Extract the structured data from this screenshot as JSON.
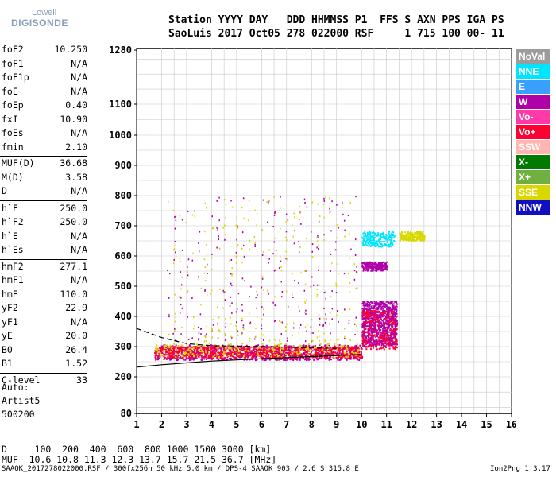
{
  "logo": {
    "line1": "Lowell",
    "line2": "DIGISONDE"
  },
  "header": {
    "row1": "Station YYYY DAY   DDD HHMMSS P1  FFS S AXN PPS IGA PS",
    "row2": "SaoLuis 2017 Oct05 278 022000 RSF     1 715 100 00- 11"
  },
  "params": [
    {
      "label": "foF2",
      "value": "10.250"
    },
    {
      "label": "foF1",
      "value": "N/A"
    },
    {
      "label": "foF1p",
      "value": "N/A"
    },
    {
      "label": "foE",
      "value": "N/A"
    },
    {
      "label": "foEp",
      "value": "0.40"
    },
    {
      "label": "fxI",
      "value": "10.90"
    },
    {
      "label": "foEs",
      "value": "N/A"
    },
    {
      "label": "fmin",
      "value": "2.10"
    },
    {
      "label": "MUF(D)",
      "value": "36.68"
    },
    {
      "label": "M(D)",
      "value": "3.58"
    },
    {
      "label": "D",
      "value": "N/A"
    },
    {
      "label": "h`F",
      "value": "250.0"
    },
    {
      "label": "h`F2",
      "value": "250.0"
    },
    {
      "label": "h`E",
      "value": "N/A"
    },
    {
      "label": "h`Es",
      "value": "N/A"
    },
    {
      "label": "hmF2",
      "value": "277.1"
    },
    {
      "label": "hmF1",
      "value": "N/A"
    },
    {
      "label": "hmE",
      "value": "110.0"
    },
    {
      "label": "yF2",
      "value": "22.9"
    },
    {
      "label": "yF1",
      "value": "N/A"
    },
    {
      "label": "yE",
      "value": "20.0"
    },
    {
      "label": "B0",
      "value": "26.4"
    },
    {
      "label": "B1",
      "value": "1.52"
    },
    {
      "label": "C-level",
      "value": "33"
    }
  ],
  "autoscale": {
    "line1": "Auto:",
    "line2": "Artist5",
    "line3": "500200"
  },
  "muf_table": {
    "row1": "D     100  200  400  600  800 1000 1500 3000 [km]",
    "row2": "MUF  10.6 10.8 11.3 12.3 13.7 15.7 21.5 36.7 [MHz]"
  },
  "footer": {
    "left": "SAAOK_2017278022000.RSF / 300fx256h 50 kHz 5.0 km / DPS-4 SAAOK 903 / 2.6 S 315.8 E",
    "right": "Ion2Png 1.3.17"
  },
  "legend": [
    {
      "label": "NoVal",
      "color": "#9c9c9c"
    },
    {
      "label": "NNE",
      "color": "#00e5ff"
    },
    {
      "label": "E",
      "color": "#3aa0ff"
    },
    {
      "label": "W",
      "color": "#b000a8"
    },
    {
      "label": "Vo-",
      "color": "#ff3aa8"
    },
    {
      "label": "Vo+",
      "color": "#ff0030"
    },
    {
      "label": "SSW",
      "color": "#ffb6b0"
    },
    {
      "label": "X-",
      "color": "#007a00"
    },
    {
      "label": "X+",
      "color": "#70b040"
    },
    {
      "label": "SSE",
      "color": "#d8d800"
    },
    {
      "label": "NNW",
      "color": "#1010c0"
    }
  ],
  "chart_data": {
    "type": "scatter",
    "title": "",
    "xlabel": "",
    "ylabel": "",
    "x_ticks": [
      1,
      2,
      3,
      4,
      5,
      6,
      7,
      8,
      9,
      10,
      11,
      12,
      13,
      14,
      15,
      16
    ],
    "y_ticks": [
      80,
      200,
      300,
      400,
      500,
      600,
      700,
      800,
      900,
      1000,
      1100,
      1280
    ],
    "xlim": [
      1,
      16
    ],
    "grid": true,
    "clusters": [
      {
        "mode": "W",
        "x_range": [
          1.7,
          10.0
        ],
        "y_range": [
          255,
          305
        ],
        "density": "high"
      },
      {
        "mode": "Vo+",
        "x_range": [
          1.7,
          10.0
        ],
        "y_range": [
          260,
          300
        ],
        "density": "high"
      },
      {
        "mode": "SSE",
        "x_range": [
          1.7,
          10.0
        ],
        "y_range": [
          265,
          310
        ],
        "density": "medium"
      },
      {
        "mode": "W",
        "x_range": [
          10.0,
          11.4
        ],
        "y_range": [
          300,
          450
        ],
        "density": "high"
      },
      {
        "mode": "Vo+",
        "x_range": [
          10.0,
          11.4
        ],
        "y_range": [
          290,
          420
        ],
        "density": "medium"
      },
      {
        "mode": "NNE",
        "x_range": [
          10.0,
          11.3
        ],
        "y_range": [
          630,
          680
        ],
        "density": "medium"
      },
      {
        "mode": "SSE",
        "x_range": [
          11.5,
          12.5
        ],
        "y_range": [
          650,
          680
        ],
        "density": "medium"
      },
      {
        "mode": "W",
        "x_range": [
          10.0,
          11.0
        ],
        "y_range": [
          550,
          580
        ],
        "density": "medium"
      },
      {
        "mode": "W",
        "x_range": [
          2.3,
          9.8
        ],
        "y_range": [
          320,
          800
        ],
        "density": "low"
      },
      {
        "mode": "SSE",
        "x_range": [
          2.3,
          9.8
        ],
        "y_range": [
          320,
          800
        ],
        "density": "low"
      }
    ],
    "traces": [
      {
        "name": "",
        "type": "solid",
        "points": [
          [
            1,
            232
          ],
          [
            2,
            240
          ],
          [
            4,
            252
          ],
          [
            6,
            260
          ],
          [
            8,
            267
          ],
          [
            10,
            274
          ]
        ]
      },
      {
        "name": "",
        "type": "dashed",
        "points": [
          [
            1,
            360
          ],
          [
            2,
            330
          ],
          [
            3,
            310
          ],
          [
            4,
            303
          ],
          [
            6,
            300
          ],
          [
            8,
            296
          ],
          [
            9,
            294
          ]
        ]
      }
    ]
  }
}
